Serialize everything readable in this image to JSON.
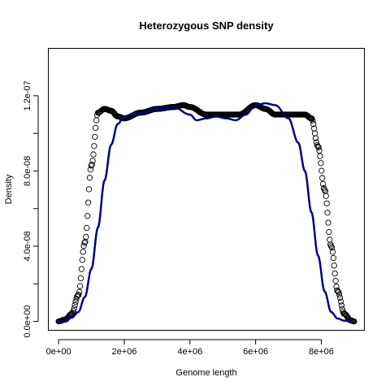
{
  "chart_data": {
    "type": "line",
    "title": "Heterozygous SNP density",
    "xlabel": "Genome length",
    "ylabel": "Density",
    "xlim": [
      -300000,
      9300000
    ],
    "ylim": [
      -4.5e-09,
      1.45e-07
    ],
    "x_ticks": [
      0,
      2000000,
      4000000,
      6000000,
      8000000
    ],
    "x_tick_labels": [
      "0e+00",
      "2e+06",
      "4e+06",
      "6e+06",
      "8e+06"
    ],
    "y_ticks": [
      0,
      2e-08,
      4e-08,
      6e-08,
      8e-08,
      1e-07,
      1.2e-07
    ],
    "y_tick_labels": [
      "0.0e+00",
      "",
      "4.0e-08",
      "",
      "8.0e-08",
      "",
      "1.2e-07"
    ],
    "grid": false,
    "series": [
      {
        "style": "points",
        "color": "#000000",
        "marker": "open-circle",
        "x_range": [
          0,
          9000000
        ],
        "n_points": 400,
        "values": [
          [
            0,
            0.0
          ],
          [
            200000,
            1e-09
          ],
          [
            400000,
            4e-09
          ],
          [
            600000,
            1.4e-08
          ],
          [
            800000,
            4.2e-08
          ],
          [
            1000000,
            8.3e-08
          ],
          [
            1200000,
            1.11e-07
          ],
          [
            1400000,
            1.13e-07
          ],
          [
            1600000,
            1.12e-07
          ],
          [
            1800000,
            1.09e-07
          ],
          [
            2000000,
            1.08e-07
          ],
          [
            2500000,
            1.11e-07
          ],
          [
            3000000,
            1.13e-07
          ],
          [
            3500000,
            1.14e-07
          ],
          [
            3800000,
            1.15e-07
          ],
          [
            4000000,
            1.14e-07
          ],
          [
            4500000,
            1.1e-07
          ],
          [
            5000000,
            1.1e-07
          ],
          [
            5500000,
            1.1e-07
          ],
          [
            6000000,
            1.15e-07
          ],
          [
            6300000,
            1.13e-07
          ],
          [
            6600000,
            1.1e-07
          ],
          [
            7000000,
            1.1e-07
          ],
          [
            7500000,
            1.1e-07
          ],
          [
            7700000,
            1.08e-07
          ],
          [
            7900000,
            9.3e-08
          ],
          [
            8100000,
            7e-08
          ],
          [
            8300000,
            4e-08
          ],
          [
            8500000,
            1.6e-08
          ],
          [
            8700000,
            4e-09
          ],
          [
            8900000,
            5e-10
          ],
          [
            9000000,
            0.0
          ]
        ]
      },
      {
        "style": "line",
        "color": "#00008B",
        "values": [
          [
            0,
            0.0
          ],
          [
            200000,
            1e-09
          ],
          [
            400000,
            2e-09
          ],
          [
            600000,
            5e-09
          ],
          [
            800000,
            1.3e-08
          ],
          [
            1000000,
            2.8e-08
          ],
          [
            1200000,
            5e-08
          ],
          [
            1400000,
            7.5e-08
          ],
          [
            1600000,
            9.4e-08
          ],
          [
            1800000,
            1.05e-07
          ],
          [
            2000000,
            1.09e-07
          ],
          [
            2500000,
            1.11e-07
          ],
          [
            3000000,
            1.13e-07
          ],
          [
            3500000,
            1.14e-07
          ],
          [
            4000000,
            1.1e-07
          ],
          [
            4200000,
            1.07e-07
          ],
          [
            4500000,
            1.08e-07
          ],
          [
            4800000,
            1.09e-07
          ],
          [
            5100000,
            1.08e-07
          ],
          [
            5400000,
            1.07e-07
          ],
          [
            5700000,
            1.1e-07
          ],
          [
            6000000,
            1.15e-07
          ],
          [
            6300000,
            1.16e-07
          ],
          [
            6600000,
            1.15e-07
          ],
          [
            7000000,
            1.08e-07
          ],
          [
            7300000,
            9.5e-08
          ],
          [
            7500000,
            8e-08
          ],
          [
            7700000,
            5.8e-08
          ],
          [
            7900000,
            3.5e-08
          ],
          [
            8100000,
            1.6e-08
          ],
          [
            8300000,
            5e-09
          ],
          [
            8500000,
            1.5e-09
          ],
          [
            8700000,
            4e-10
          ],
          [
            8900000,
            0.0
          ]
        ]
      }
    ]
  }
}
